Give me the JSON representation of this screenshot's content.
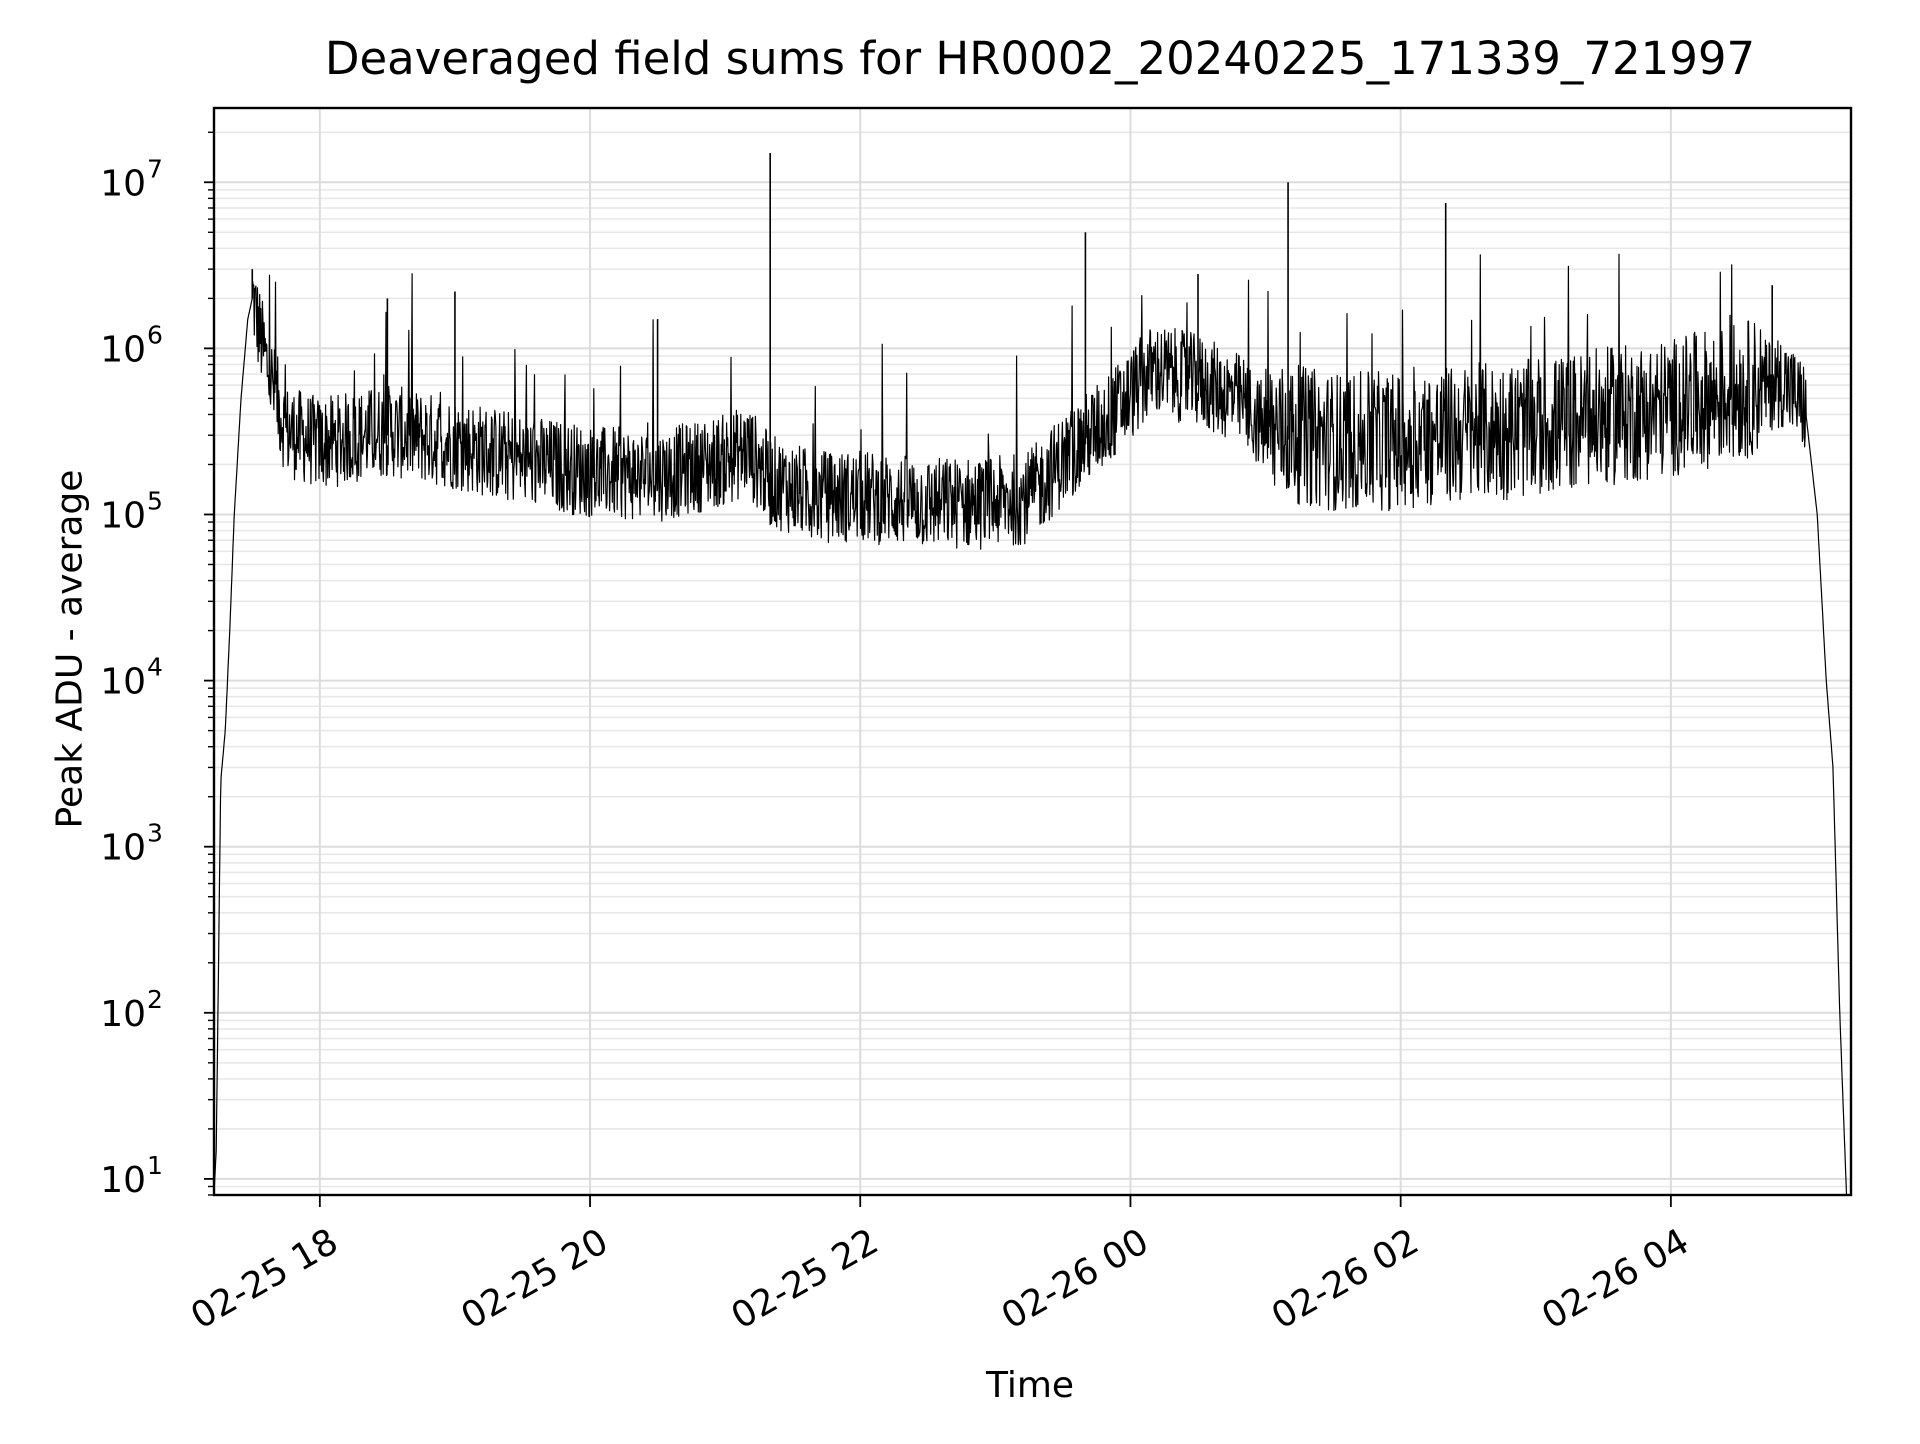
{
  "chart_data": {
    "type": "line",
    "title": "Deaveraged field sums for HR0002_20240225_171339_721997",
    "xlabel": "Time",
    "ylabel": "Peak ADU - average",
    "y_scale": "log",
    "grid": "on (major and minor)",
    "xlim": [
      "02-25 17:13",
      "02-26 05:20"
    ],
    "ylim": [
      8,
      28000000
    ],
    "x_ticks": [
      "02-25 18",
      "02-25 20",
      "02-25 22",
      "02-26 00",
      "02-26 02",
      "02-26 04"
    ],
    "y_ticks": [
      {
        "value": 10,
        "base": "10",
        "exp": "1"
      },
      {
        "value": 100,
        "base": "10",
        "exp": "2"
      },
      {
        "value": 1000,
        "base": "10",
        "exp": "3"
      },
      {
        "value": 10000,
        "base": "10",
        "exp": "4"
      },
      {
        "value": 100000,
        "base": "10",
        "exp": "5"
      },
      {
        "value": 1000000,
        "base": "10",
        "exp": "6"
      },
      {
        "value": 10000000,
        "base": "10",
        "exp": "7"
      }
    ],
    "series": [
      {
        "color": "#000000",
        "points": [
          [
            "02-25 17:13",
            8
          ],
          [
            "02-25 17:14",
            15
          ],
          [
            "02-25 17:16",
            2500
          ],
          [
            "02-25 17:18",
            5000
          ],
          [
            "02-25 17:20",
            20000
          ],
          [
            "02-25 17:22",
            100000
          ],
          [
            "02-25 17:25",
            500000
          ],
          [
            "02-25 17:28",
            1500000
          ],
          [
            "02-25 17:30",
            2000000
          ],
          [
            "02-25 17:33",
            1200000
          ],
          [
            "02-25 17:36",
            800000
          ],
          [
            "02-25 17:40",
            500000
          ],
          [
            "02-25 17:45",
            300000
          ],
          [
            "02-25 18:00",
            250000
          ],
          [
            "02-25 18:30",
            300000
          ],
          [
            "02-25 19:00",
            250000
          ],
          [
            "02-25 19:30",
            200000
          ],
          [
            "02-25 20:00",
            170000
          ],
          [
            "02-25 20:30",
            160000
          ],
          [
            "02-25 21:00",
            200000
          ],
          [
            "02-25 21:10",
            230000
          ],
          [
            "02-25 21:20",
            150000
          ],
          [
            "02-25 21:40",
            120000
          ],
          [
            "02-25 22:00",
            120000
          ],
          [
            "02-25 22:30",
            110000
          ],
          [
            "02-25 23:00",
            110000
          ],
          [
            "02-25 23:15",
            120000
          ],
          [
            "02-25 23:30",
            200000
          ],
          [
            "02-25 23:50",
            350000
          ],
          [
            "02-26 00:10",
            700000
          ],
          [
            "02-26 00:30",
            600000
          ],
          [
            "02-26 00:50",
            450000
          ],
          [
            "02-26 01:00",
            300000
          ],
          [
            "02-26 01:30",
            250000
          ],
          [
            "02-26 02:00",
            250000
          ],
          [
            "02-26 02:30",
            280000
          ],
          [
            "02-26 03:00",
            300000
          ],
          [
            "02-26 03:30",
            350000
          ],
          [
            "02-26 04:00",
            400000
          ],
          [
            "02-26 04:30",
            500000
          ],
          [
            "02-26 04:50",
            600000
          ],
          [
            "02-26 05:00",
            400000
          ],
          [
            "02-26 05:05",
            100000
          ],
          [
            "02-26 05:09",
            10000
          ],
          [
            "02-26 05:12",
            3000
          ],
          [
            "02-26 05:15",
            100
          ],
          [
            "02-26 05:18",
            8
          ]
        ],
        "spikes": [
          [
            "02-25 17:30",
            3000000
          ],
          [
            "02-25 18:30",
            2000000
          ],
          [
            "02-25 19:00",
            2200000
          ],
          [
            "02-25 20:30",
            1500000
          ],
          [
            "02-25 21:20",
            15000000
          ],
          [
            "02-25 23:40",
            5000000
          ],
          [
            "02-26 00:30",
            2800000
          ],
          [
            "02-26 01:10",
            10000000
          ],
          [
            "02-26 02:20",
            7500000
          ],
          [
            "02-26 04:45",
            2400000
          ]
        ]
      }
    ]
  }
}
